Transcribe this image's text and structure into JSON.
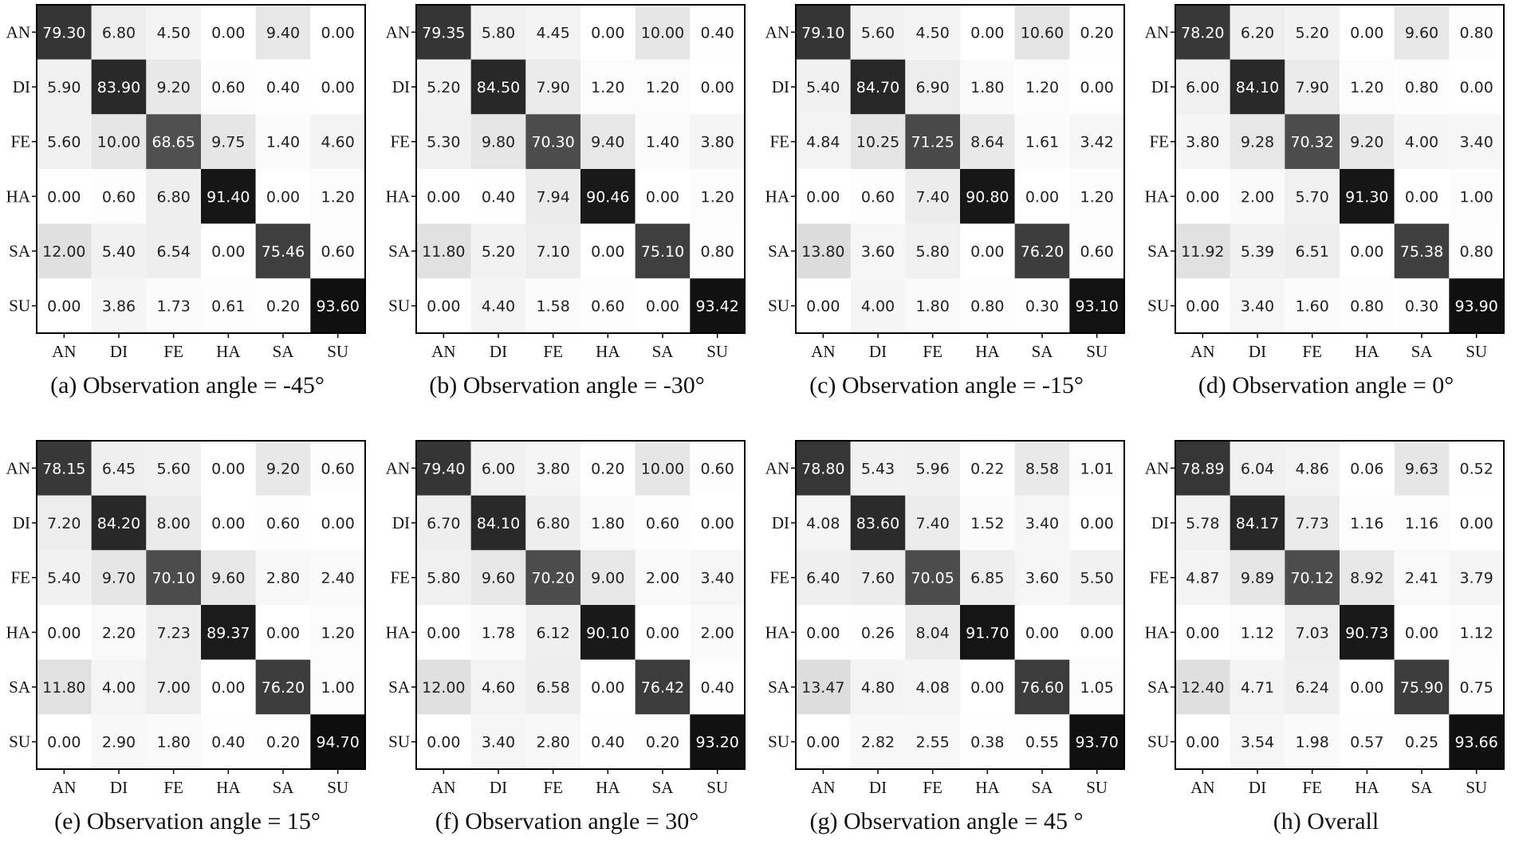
{
  "labels": [
    "AN",
    "DI",
    "FE",
    "HA",
    "SA",
    "SU"
  ],
  "chart_data": [
    {
      "type": "heatmap",
      "caption": "(a) Observation angle = -45°",
      "xticks": [
        "AN",
        "DI",
        "FE",
        "HA",
        "SA",
        "SU"
      ],
      "yticks": [
        "AN",
        "DI",
        "FE",
        "HA",
        "SA",
        "SU"
      ],
      "value_range": [
        0,
        100
      ],
      "matrix": [
        [
          "79.30",
          "6.80",
          "4.50",
          "0.00",
          "9.40",
          "0.00"
        ],
        [
          "5.90",
          "83.90",
          "9.20",
          "0.60",
          "0.40",
          "0.00"
        ],
        [
          "5.60",
          "10.00",
          "68.65",
          "9.75",
          "1.40",
          "4.60"
        ],
        [
          "0.00",
          "0.60",
          "6.80",
          "91.40",
          "0.00",
          "1.20"
        ],
        [
          "12.00",
          "5.40",
          "6.54",
          "0.00",
          "75.46",
          "0.60"
        ],
        [
          "0.00",
          "3.86",
          "1.73",
          "0.61",
          "0.20",
          "93.60"
        ]
      ]
    },
    {
      "type": "heatmap",
      "caption": "(b) Observation angle = -30°",
      "xticks": [
        "AN",
        "DI",
        "FE",
        "HA",
        "SA",
        "SU"
      ],
      "yticks": [
        "AN",
        "DI",
        "FE",
        "HA",
        "SA",
        "SU"
      ],
      "value_range": [
        0,
        100
      ],
      "matrix": [
        [
          "79.35",
          "5.80",
          "4.45",
          "0.00",
          "10.00",
          "0.40"
        ],
        [
          "5.20",
          "84.50",
          "7.90",
          "1.20",
          "1.20",
          "0.00"
        ],
        [
          "5.30",
          "9.80",
          "70.30",
          "9.40",
          "1.40",
          "3.80"
        ],
        [
          "0.00",
          "0.40",
          "7.94",
          "90.46",
          "0.00",
          "1.20"
        ],
        [
          "11.80",
          "5.20",
          "7.10",
          "0.00",
          "75.10",
          "0.80"
        ],
        [
          "0.00",
          "4.40",
          "1.58",
          "0.60",
          "0.00",
          "93.42"
        ]
      ]
    },
    {
      "type": "heatmap",
      "caption": "(c) Observation angle = -15°",
      "xticks": [
        "AN",
        "DI",
        "FE",
        "HA",
        "SA",
        "SU"
      ],
      "yticks": [
        "AN",
        "DI",
        "FE",
        "HA",
        "SA",
        "SU"
      ],
      "value_range": [
        0,
        100
      ],
      "matrix": [
        [
          "79.10",
          "5.60",
          "4.50",
          "0.00",
          "10.60",
          "0.20"
        ],
        [
          "5.40",
          "84.70",
          "6.90",
          "1.80",
          "1.20",
          "0.00"
        ],
        [
          "4.84",
          "10.25",
          "71.25",
          "8.64",
          "1.61",
          "3.42"
        ],
        [
          "0.00",
          "0.60",
          "7.40",
          "90.80",
          "0.00",
          "1.20"
        ],
        [
          "13.80",
          "3.60",
          "5.80",
          "0.00",
          "76.20",
          "0.60"
        ],
        [
          "0.00",
          "4.00",
          "1.80",
          "0.80",
          "0.30",
          "93.10"
        ]
      ]
    },
    {
      "type": "heatmap",
      "caption": "(d) Observation angle = 0°",
      "xticks": [
        "AN",
        "DI",
        "FE",
        "HA",
        "SA",
        "SU"
      ],
      "yticks": [
        "AN",
        "DI",
        "FE",
        "HA",
        "SA",
        "SU"
      ],
      "value_range": [
        0,
        100
      ],
      "matrix": [
        [
          "78.20",
          "6.20",
          "5.20",
          "0.00",
          "9.60",
          "0.80"
        ],
        [
          "6.00",
          "84.10",
          "7.90",
          "1.20",
          "0.80",
          "0.00"
        ],
        [
          "3.80",
          "9.28",
          "70.32",
          "9.20",
          "4.00",
          "3.40"
        ],
        [
          "0.00",
          "2.00",
          "5.70",
          "91.30",
          "0.00",
          "1.00"
        ],
        [
          "11.92",
          "5.39",
          "6.51",
          "0.00",
          "75.38",
          "0.80"
        ],
        [
          "0.00",
          "3.40",
          "1.60",
          "0.80",
          "0.30",
          "93.90"
        ]
      ]
    },
    {
      "type": "heatmap",
      "caption": "(e) Observation angle = 15°",
      "xticks": [
        "AN",
        "DI",
        "FE",
        "HA",
        "SA",
        "SU"
      ],
      "yticks": [
        "AN",
        "DI",
        "FE",
        "HA",
        "SA",
        "SU"
      ],
      "value_range": [
        0,
        100
      ],
      "matrix": [
        [
          "78.15",
          "6.45",
          "5.60",
          "0.00",
          "9.20",
          "0.60"
        ],
        [
          "7.20",
          "84.20",
          "8.00",
          "0.00",
          "0.60",
          "0.00"
        ],
        [
          "5.40",
          "9.70",
          "70.10",
          "9.60",
          "2.80",
          "2.40"
        ],
        [
          "0.00",
          "2.20",
          "7.23",
          "89.37",
          "0.00",
          "1.20"
        ],
        [
          "11.80",
          "4.00",
          "7.00",
          "0.00",
          "76.20",
          "1.00"
        ],
        [
          "0.00",
          "2.90",
          "1.80",
          "0.40",
          "0.20",
          "94.70"
        ]
      ]
    },
    {
      "type": "heatmap",
      "caption": "(f) Observation angle = 30°",
      "xticks": [
        "AN",
        "DI",
        "FE",
        "HA",
        "SA",
        "SU"
      ],
      "yticks": [
        "AN",
        "DI",
        "FE",
        "HA",
        "SA",
        "SU"
      ],
      "value_range": [
        0,
        100
      ],
      "matrix": [
        [
          "79.40",
          "6.00",
          "3.80",
          "0.20",
          "10.00",
          "0.60"
        ],
        [
          "6.70",
          "84.10",
          "6.80",
          "1.80",
          "0.60",
          "0.00"
        ],
        [
          "5.80",
          "9.60",
          "70.20",
          "9.00",
          "2.00",
          "3.40"
        ],
        [
          "0.00",
          "1.78",
          "6.12",
          "90.10",
          "0.00",
          "2.00"
        ],
        [
          "12.00",
          "4.60",
          "6.58",
          "0.00",
          "76.42",
          "0.40"
        ],
        [
          "0.00",
          "3.40",
          "2.80",
          "0.40",
          "0.20",
          "93.20"
        ]
      ]
    },
    {
      "type": "heatmap",
      "caption": "(g) Observation angle = 45 °",
      "xticks": [
        "AN",
        "DI",
        "FE",
        "HA",
        "SA",
        "SU"
      ],
      "yticks": [
        "AN",
        "DI",
        "FE",
        "HA",
        "SA",
        "SU"
      ],
      "value_range": [
        0,
        100
      ],
      "matrix": [
        [
          "78.80",
          "5.43",
          "5.96",
          "0.22",
          "8.58",
          "1.01"
        ],
        [
          "4.08",
          "83.60",
          "7.40",
          "1.52",
          "3.40",
          "0.00"
        ],
        [
          "6.40",
          "7.60",
          "70.05",
          "6.85",
          "3.60",
          "5.50"
        ],
        [
          "0.00",
          "0.26",
          "8.04",
          "91.70",
          "0.00",
          "0.00"
        ],
        [
          "13.47",
          "4.80",
          "4.08",
          "0.00",
          "76.60",
          "1.05"
        ],
        [
          "0.00",
          "2.82",
          "2.55",
          "0.38",
          "0.55",
          "93.70"
        ]
      ]
    },
    {
      "type": "heatmap",
      "caption": "(h) Overall",
      "xticks": [
        "AN",
        "DI",
        "FE",
        "HA",
        "SA",
        "SU"
      ],
      "yticks": [
        "AN",
        "DI",
        "FE",
        "HA",
        "SA",
        "SU"
      ],
      "value_range": [
        0,
        100
      ],
      "matrix": [
        [
          "78.89",
          "6.04",
          "4.86",
          "0.06",
          "9.63",
          "0.52"
        ],
        [
          "5.78",
          "84.17",
          "7.73",
          "1.16",
          "1.16",
          "0.00"
        ],
        [
          "4.87",
          "9.89",
          "70.12",
          "8.92",
          "2.41",
          "3.79"
        ],
        [
          "0.00",
          "1.12",
          "7.03",
          "90.73",
          "0.00",
          "1.12"
        ],
        [
          "12.40",
          "4.71",
          "6.24",
          "0.00",
          "75.90",
          "0.75"
        ],
        [
          "0.00",
          "3.54",
          "1.98",
          "0.57",
          "0.25",
          "93.66"
        ]
      ]
    }
  ]
}
